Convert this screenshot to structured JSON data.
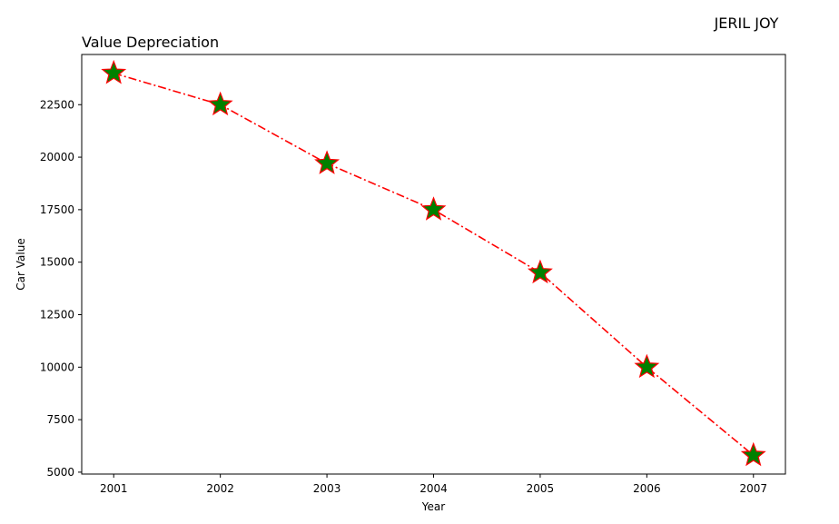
{
  "suptitle": "JERIL JOY",
  "chart_data": {
    "type": "line",
    "title": "Value Depreciation",
    "xlabel": "Year",
    "ylabel": "Car Value",
    "x": [
      2001,
      2002,
      2003,
      2004,
      2005,
      2006,
      2007
    ],
    "series": [
      {
        "values": [
          24000,
          22500,
          19700,
          17500,
          14500,
          10000,
          5800
        ]
      }
    ],
    "xlim": [
      2000.7,
      2007.3
    ],
    "ylim": [
      4910,
      24890
    ],
    "yticks": [
      5000,
      7500,
      10000,
      12500,
      15000,
      17500,
      20000,
      22500
    ],
    "xticks": [
      2001,
      2002,
      2003,
      2004,
      2005,
      2006,
      2007
    ],
    "grid": false,
    "line_color": "#ff0000",
    "line_style": "dash-dot",
    "marker": "star",
    "marker_face_color": "#008000",
    "marker_edge_color": "#ff0000"
  }
}
